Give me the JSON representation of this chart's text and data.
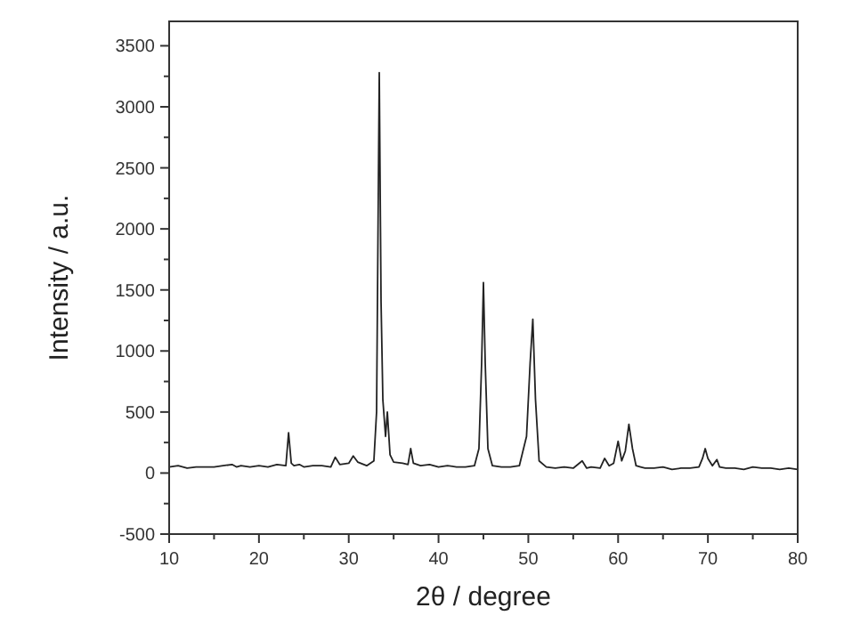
{
  "chart_data": {
    "type": "line",
    "xlabel": "2θ / degree",
    "ylabel": "Intensity / a.u.",
    "xlim": [
      10,
      80
    ],
    "ylim": [
      -500,
      3700
    ],
    "xticks": [
      10,
      {
        "value": 15,
        "label": null
      },
      20,
      {
        "value": 25,
        "label": null
      },
      30,
      {
        "value": 35,
        "label": null
      },
      40,
      {
        "value": 45,
        "label": null
      },
      50,
      {
        "value": 55,
        "label": null
      },
      60,
      {
        "value": 65,
        "label": null
      },
      70,
      {
        "value": 75,
        "label": null
      },
      80
    ],
    "yticks": [
      -500,
      {
        "value": -250,
        "label": null
      },
      0,
      {
        "value": 250,
        "label": null
      },
      500,
      {
        "value": 750,
        "label": null
      },
      1000,
      {
        "value": 1250,
        "label": null
      },
      1500,
      {
        "value": 1750,
        "label": null
      },
      2000,
      {
        "value": 2250,
        "label": null
      },
      2500,
      {
        "value": 2750,
        "label": null
      },
      3000,
      {
        "value": 3250,
        "label": null
      },
      3500
    ],
    "grid": false,
    "line_style": "solid",
    "series": [
      {
        "color": "#222222",
        "x": [
          10,
          11,
          12,
          13,
          14,
          15,
          16,
          17,
          17.5,
          18,
          19,
          20,
          21,
          22,
          23,
          23.3,
          23.6,
          23.9,
          24.5,
          25,
          26,
          27,
          28,
          28.5,
          29,
          30,
          30.5,
          31,
          32,
          32.8,
          33.1,
          33.4,
          33.6,
          33.8,
          34.1,
          34.3,
          34.6,
          35,
          36,
          36.6,
          36.9,
          37.2,
          38,
          39,
          40,
          41,
          42,
          43,
          44,
          44.5,
          44.8,
          45,
          45.2,
          45.5,
          46,
          47,
          48,
          49,
          49.8,
          50.2,
          50.5,
          50.8,
          51.2,
          52,
          53,
          54,
          55,
          56,
          56.5,
          57,
          58,
          58.5,
          59,
          59.5,
          60,
          60.4,
          60.8,
          61.2,
          61.6,
          62,
          62.5,
          63,
          64,
          65,
          66,
          67,
          68,
          69,
          69.4,
          69.7,
          70,
          70.5,
          71,
          71.3,
          72,
          73,
          74,
          75,
          76,
          77,
          78,
          79,
          80
        ],
        "values": [
          50,
          60,
          40,
          50,
          50,
          50,
          60,
          70,
          50,
          60,
          50,
          60,
          50,
          70,
          60,
          330,
          80,
          60,
          70,
          50,
          60,
          60,
          50,
          130,
          70,
          80,
          140,
          90,
          60,
          100,
          500,
          3280,
          1400,
          600,
          300,
          500,
          150,
          90,
          80,
          70,
          200,
          80,
          60,
          70,
          50,
          60,
          50,
          50,
          60,
          200,
          900,
          1560,
          900,
          200,
          60,
          50,
          50,
          60,
          300,
          900,
          1260,
          600,
          100,
          50,
          40,
          50,
          40,
          100,
          40,
          50,
          40,
          120,
          60,
          80,
          260,
          100,
          180,
          400,
          200,
          60,
          50,
          40,
          40,
          50,
          30,
          40,
          40,
          50,
          120,
          200,
          120,
          60,
          110,
          50,
          40,
          40,
          30,
          50,
          40,
          40,
          30,
          40,
          30
        ]
      }
    ]
  }
}
